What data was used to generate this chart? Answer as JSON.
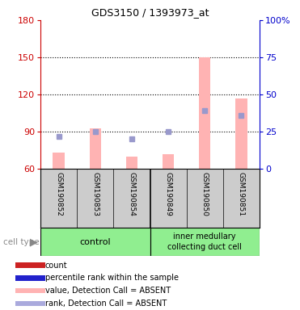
{
  "title": "GDS3150 / 1393973_at",
  "samples": [
    "GSM190852",
    "GSM190853",
    "GSM190854",
    "GSM190849",
    "GSM190850",
    "GSM190851"
  ],
  "ylim_left": [
    60,
    180
  ],
  "ylim_right": [
    0,
    100
  ],
  "yticks_left": [
    60,
    90,
    120,
    150,
    180
  ],
  "yticks_right": [
    0,
    25,
    50,
    75,
    100
  ],
  "ytick_labels_right": [
    "0",
    "25",
    "50",
    "75",
    "100%"
  ],
  "pink_bar_values": [
    73,
    93,
    70,
    72,
    150,
    117
  ],
  "pink_bar_base": 60,
  "blue_square_values_left": [
    86,
    90,
    84,
    90,
    107,
    103
  ],
  "left_axis_color": "#cc0000",
  "right_axis_color": "#0000cc",
  "bar_color_pink": "#ffb3b3",
  "square_color_blue": "#9999cc",
  "sample_area_bg": "#cccccc",
  "group_color": "#90ee90",
  "dotted_yticks": [
    90,
    120,
    150
  ],
  "legend_items": [
    {
      "label": "count",
      "color": "#cc2222"
    },
    {
      "label": "percentile rank within the sample",
      "color": "#2222cc"
    },
    {
      "label": "value, Detection Call = ABSENT",
      "color": "#ffb3b3"
    },
    {
      "label": "rank, Detection Call = ABSENT",
      "color": "#aaaadd"
    }
  ],
  "bar_width": 0.32
}
